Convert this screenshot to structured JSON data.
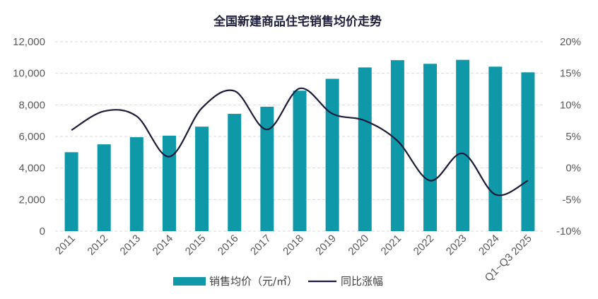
{
  "chart_data": {
    "type": "bar",
    "title": "全国新建商品住宅销售均价走势",
    "categories": [
      "2011",
      "2012",
      "2013",
      "2014",
      "2015",
      "2016",
      "2017",
      "2018",
      "2019",
      "2020",
      "2021",
      "2022",
      "2023",
      "2024",
      "Q1~Q3 2025"
    ],
    "series": [
      {
        "name": "销售均价（元/㎡）",
        "type": "bar",
        "axis": "left",
        "values": [
          5000,
          5500,
          5950,
          6050,
          6620,
          7430,
          7880,
          8900,
          9650,
          10370,
          10830,
          10600,
          10850,
          10420,
          10060
        ]
      },
      {
        "name": "同比涨幅",
        "type": "line",
        "axis": "right",
        "smooth": true,
        "values": [
          6.0,
          9.0,
          8.2,
          1.8,
          9.5,
          12.2,
          6.1,
          12.6,
          8.6,
          7.5,
          4.3,
          -2.0,
          2.3,
          -4.2,
          -2.0
        ]
      }
    ],
    "ylim_left": [
      0,
      12000
    ],
    "ylim_right": [
      -10,
      20
    ],
    "yticks_left": [
      "0",
      "2,000",
      "4,000",
      "6,000",
      "8,000",
      "10,000",
      "12,000"
    ],
    "yticks_right": [
      "-10%",
      "-5%",
      "0%",
      "5%",
      "10%",
      "15%",
      "20%"
    ],
    "grid": true,
    "legend_position": "bottom",
    "colors": {
      "bar": "#0f98a8",
      "line": "#1b1b3a",
      "grid": "#d9d9d9",
      "title": "#1f1f3d"
    }
  }
}
